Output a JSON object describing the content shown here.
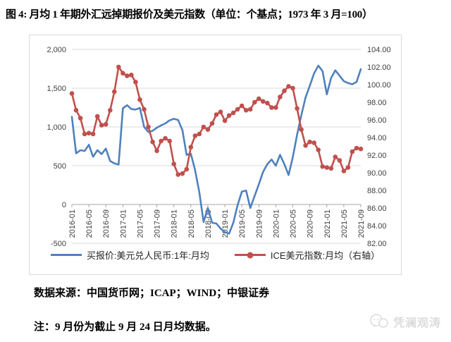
{
  "title": "图 4: 月均 1 年期外汇远掉期报价及美元指数（单位：个基点；1973 年 3 月=100）",
  "source_line": "数据来源：中国货币网；ICAP；WIND；中银证券",
  "note_line": "注：9 月份为截止 9 月 24 日月均数据。",
  "watermark_text": "凭澜观涛",
  "colors": {
    "blue_series": "#4F81BD",
    "red_series": "#C0504D",
    "gridline": "#d9d9d9",
    "axis_line": "#a6a6a6",
    "tick_text": "#404040",
    "box_border": "#d9d9d9",
    "watermark": "#dcdcdc"
  },
  "chart_data": {
    "type": "line",
    "title": "月均1年期外汇远掉期报价及美元指数",
    "grid": "horizontal-only",
    "legend_position": "bottom",
    "x": [
      "2016-01",
      "2016-02",
      "2016-03",
      "2016-04",
      "2016-05",
      "2016-06",
      "2016-07",
      "2016-08",
      "2016-09",
      "2016-10",
      "2016-11",
      "2016-12",
      "2017-01",
      "2017-02",
      "2017-03",
      "2017-04",
      "2017-05",
      "2017-06",
      "2017-07",
      "2017-08",
      "2017-09",
      "2017-10",
      "2017-11",
      "2017-12",
      "2018-01",
      "2018-02",
      "2018-03",
      "2018-04",
      "2018-05",
      "2018-06",
      "2018-07",
      "2018-08",
      "2018-09",
      "2018-10",
      "2018-11",
      "2018-12",
      "2019-01",
      "2019-02",
      "2019-03",
      "2019-04",
      "2019-05",
      "2019-06",
      "2019-07",
      "2019-08",
      "2019-09",
      "2019-10",
      "2019-11",
      "2019-12",
      "2020-01",
      "2020-02",
      "2020-03",
      "2020-04",
      "2020-05",
      "2020-06",
      "2020-07",
      "2020-08",
      "2020-09",
      "2020-10",
      "2020-11",
      "2020-12",
      "2021-01",
      "2021-02",
      "2021-03",
      "2021-04",
      "2021-05",
      "2021-06",
      "2021-07",
      "2021-08",
      "2021-09"
    ],
    "x_tick_labels": [
      "2016-01",
      "2016-05",
      "2016-09",
      "2017-01",
      "2017-05",
      "2017-09",
      "2018-01",
      "2018-05",
      "2018-09",
      "2019-01",
      "2019-05",
      "2019-09",
      "2020-01",
      "2020-05",
      "2020-09",
      "2021-01",
      "2021-05",
      "2021-09"
    ],
    "x_tick_every": 4,
    "left_axis": {
      "min": -500,
      "max": 2000,
      "ticks": [
        "2,000",
        "1,500",
        "1,000",
        "500",
        "0",
        "-500"
      ]
    },
    "right_axis": {
      "min": 82,
      "max": 104,
      "ticks": [
        "104.00",
        "102.00",
        "100.00",
        "98.00",
        "96.00",
        "94.00",
        "92.00",
        "90.00",
        "88.00",
        "86.00",
        "84.00",
        "82.00"
      ]
    },
    "series": [
      {
        "name": "买报价:美元兑人民币:1年:月均",
        "axis": "left",
        "color": "#4F81BD",
        "marker": "none",
        "values": [
          1130,
          660,
          700,
          690,
          770,
          615,
          700,
          650,
          720,
          560,
          530,
          515,
          1240,
          1280,
          1230,
          1225,
          1245,
          1000,
          935,
          950,
          990,
          1020,
          1045,
          1085,
          1105,
          1090,
          960,
          640,
          655,
          440,
          155,
          -225,
          -45,
          -235,
          -245,
          -310,
          -355,
          -375,
          -235,
          -10,
          165,
          180,
          -45,
          110,
          260,
          420,
          520,
          580,
          500,
          640,
          520,
          380,
          610,
          900,
          1150,
          1380,
          1530,
          1690,
          1790,
          1720,
          1420,
          1630,
          1730,
          1660,
          1590,
          1565,
          1550,
          1580,
          1745
        ]
      },
      {
        "name": "ICE美元指数:月均（右轴）",
        "axis": "right",
        "color": "#C0504D",
        "marker": "circle",
        "values": [
          99.0,
          97.1,
          96.2,
          94.4,
          94.5,
          94.4,
          96.4,
          95.4,
          95.5,
          97.1,
          99.2,
          102.0,
          101.3,
          101.0,
          101.1,
          100.3,
          98.3,
          97.2,
          95.2,
          93.5,
          92.5,
          93.6,
          93.9,
          93.6,
          91.0,
          89.8,
          89.9,
          90.4,
          92.9,
          94.2,
          94.4,
          95.2,
          94.9,
          95.6,
          96.6,
          96.9,
          95.9,
          96.5,
          96.8,
          97.2,
          97.6,
          97.1,
          97.2,
          98.0,
          98.4,
          98.1,
          97.9,
          97.4,
          97.4,
          98.6,
          99.3,
          99.8,
          99.6,
          97.3,
          94.9,
          93.1,
          93.5,
          93.4,
          92.6,
          90.7,
          90.6,
          90.5,
          91.8,
          91.4,
          90.2,
          90.6,
          92.4,
          92.8,
          92.7
        ]
      }
    ]
  }
}
